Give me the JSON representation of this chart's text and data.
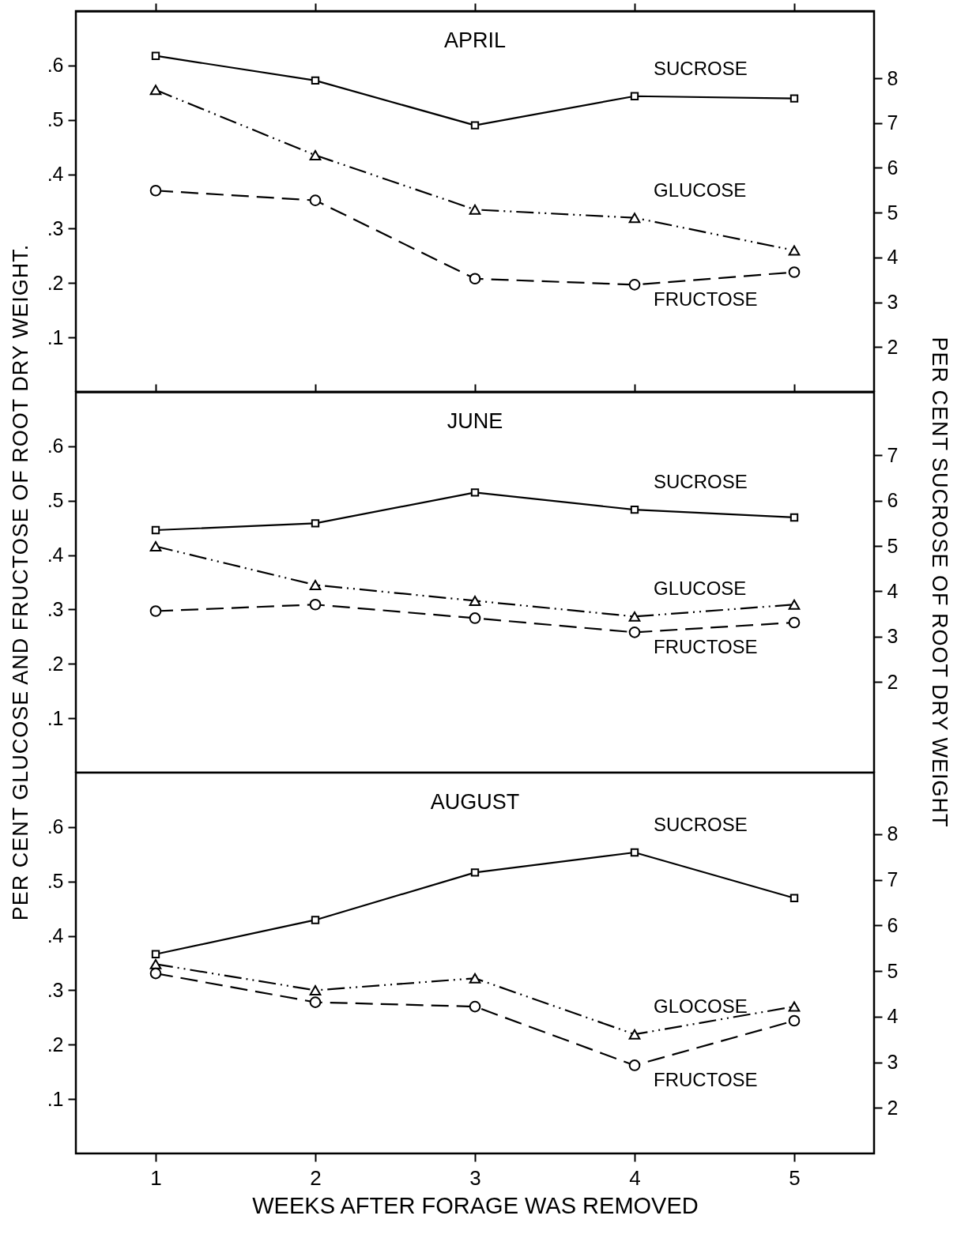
{
  "chart_data": [
    {
      "type": "line",
      "title": "APRIL",
      "x": [
        1,
        2,
        3,
        4,
        5
      ],
      "xlim": [
        0.5,
        5.5
      ],
      "xticks": [
        1,
        2,
        3,
        4,
        5
      ],
      "ylim": [
        0,
        0.7
      ],
      "yticks": [
        {
          "value": 0.1,
          "label": ".1"
        },
        {
          "value": 0.2,
          "label": ".2"
        },
        {
          "value": 0.3,
          "label": ".3"
        },
        {
          "value": 0.4,
          "label": ".4"
        },
        {
          "value": 0.5,
          "label": ".5"
        },
        {
          "value": 0.6,
          "label": ".6"
        }
      ],
      "y2lim": [
        1.0,
        9.5
      ],
      "y2ticks": [
        2,
        3,
        4,
        5,
        6,
        7,
        8
      ],
      "tick_labels": "y",
      "series": [
        {
          "name": "SUCROSE",
          "color": "#000000",
          "axis": "y2",
          "marker": "square",
          "line_style": "solid",
          "values": [
            8.5,
            7.95,
            6.95,
            7.6,
            7.55
          ]
        },
        {
          "name": "GLUCOSE",
          "color": "#000000",
          "marker": "triangle",
          "line_style": "dotted",
          "values": [
            0.555,
            0.435,
            0.335,
            0.32,
            0.26
          ]
        },
        {
          "name": "FRUCTOSE",
          "color": "#000000",
          "marker": "circle",
          "line_style": "dashed",
          "values": [
            0.37,
            0.352,
            0.208,
            0.197,
            0.22
          ]
        }
      ]
    },
    {
      "type": "line",
      "title": "JUNE",
      "x": [
        1,
        2,
        3,
        4,
        5
      ],
      "xlim": [
        0.5,
        5.5
      ],
      "xticks": [
        1,
        2,
        3,
        4,
        5
      ],
      "ylim": [
        0,
        0.7
      ],
      "yticks": [
        {
          "value": 0.1,
          "label": ".1"
        },
        {
          "value": 0.2,
          "label": ".2"
        },
        {
          "value": 0.3,
          "label": ".3"
        },
        {
          "value": 0.4,
          "label": ".4"
        },
        {
          "value": 0.5,
          "label": ".5"
        },
        {
          "value": 0.6,
          "label": ".6"
        }
      ],
      "y2lim": [
        0,
        8.4
      ],
      "y2ticks": [
        2,
        3,
        4,
        5,
        6,
        7
      ],
      "tick_labels": "y",
      "ylabel": "PER CENT GLUCOSE AND FRUCTOSE OF ROOT DRY WEIGHT.",
      "y2label": "PER CENT SUCROSE OF ROOT DRY WEIGHT",
      "series": [
        {
          "name": "SUCROSE",
          "color": "#000000",
          "axis": "y2",
          "marker": "square",
          "line_style": "solid",
          "values": [
            5.35,
            5.5,
            6.18,
            5.8,
            5.63
          ]
        },
        {
          "name": "GLUCOSE",
          "color": "#000000",
          "marker": "triangle",
          "line_style": "dotted",
          "values": [
            0.416,
            0.345,
            0.316,
            0.287,
            0.309
          ]
        },
        {
          "name": "FRUCTOSE",
          "color": "#000000",
          "marker": "circle",
          "line_style": "dashed",
          "values": [
            0.297,
            0.309,
            0.284,
            0.258,
            0.276
          ]
        }
      ]
    },
    {
      "type": "line",
      "title": "AUGUST",
      "x": [
        1,
        2,
        3,
        4,
        5
      ],
      "xlim": [
        0.5,
        5.5
      ],
      "xticks": [
        1,
        2,
        3,
        4,
        5
      ],
      "ylim": [
        0,
        0.7
      ],
      "yticks": [
        {
          "value": 0.1,
          "label": ".1"
        },
        {
          "value": 0.2,
          "label": ".2"
        },
        {
          "value": 0.3,
          "label": ".3"
        },
        {
          "value": 0.4,
          "label": ".4"
        },
        {
          "value": 0.5,
          "label": ".5"
        },
        {
          "value": 0.6,
          "label": ".6"
        }
      ],
      "y2lim": [
        1.0,
        9.35
      ],
      "y2ticks": [
        2,
        3,
        4,
        5,
        6,
        7,
        8
      ],
      "xlabel": "WEEKS AFTER FORAGE WAS REMOVED",
      "series": [
        {
          "name": "SUCROSE",
          "color": "#000000",
          "axis": "y2",
          "marker": "square",
          "line_style": "solid",
          "values": [
            5.37,
            6.12,
            7.16,
            7.6,
            6.6
          ]
        },
        {
          "name": "GLOCOSE",
          "color": "#000000",
          "marker": "triangle",
          "line_style": "dotted",
          "values": [
            0.348,
            0.3,
            0.322,
            0.219,
            0.27
          ]
        },
        {
          "name": "FRUCTOSE",
          "color": "#000000",
          "marker": "circle",
          "line_style": "dashed",
          "values": [
            0.331,
            0.278,
            0.27,
            0.162,
            0.244
          ]
        }
      ]
    }
  ]
}
